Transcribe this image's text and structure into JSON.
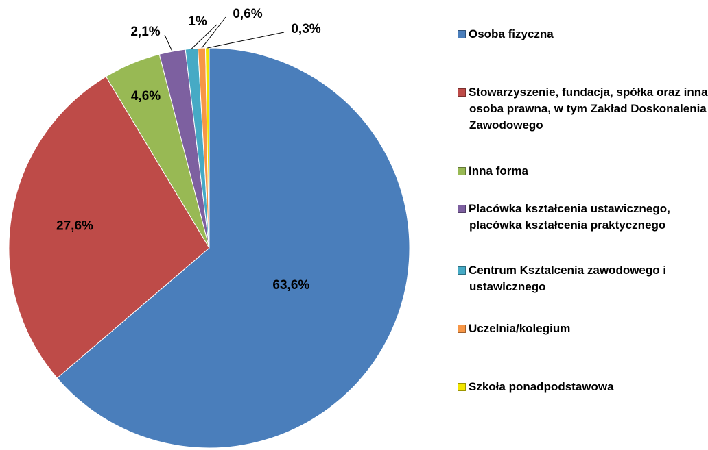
{
  "chart_data": {
    "type": "pie",
    "categories": [
      "Osoba fizyczna",
      "Stowarzyszenie, fundacja, spółka oraz inna osoba prawna, w tym Zakład Doskonalenia Zawodowego",
      "Inna forma",
      "Placówka kształcenia ustawicznego, placówka kształcenia praktycznego",
      "Centrum Ksztalcenia zawodowego i ustawicznego",
      "Uczelnia/kolegium",
      "Szkoła ponadpodstawowa"
    ],
    "values": [
      63.6,
      27.6,
      4.6,
      2.1,
      1,
      0.6,
      0.3
    ],
    "value_labels": [
      "63,6%",
      "27,6%",
      "4,6%",
      "2,1%",
      "1%",
      "0,6%",
      "0,3%"
    ],
    "colors": [
      "#4a7ebb",
      "#be4b48",
      "#98b954",
      "#7d60a0",
      "#46aac5",
      "#f79646",
      "#f2e600"
    ],
    "legend": "right"
  }
}
